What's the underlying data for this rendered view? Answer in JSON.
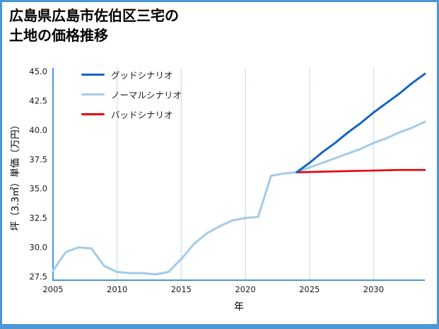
{
  "title": {
    "line1": "広島県広島市佐伯区三宅の",
    "line2": "土地の価格推移"
  },
  "colors": {
    "figure_border": "#4d97d2",
    "axis": "#4d97d2",
    "grid": "#cfe3f5",
    "text": "#1a1a1a",
    "good": "#1565c0",
    "normal": "#a3cbe9",
    "bad": "#e8000b"
  },
  "chart_data": {
    "type": "line",
    "title": "広島県広島市佐伯区三宅の土地の価格推移",
    "xlabel": "年",
    "ylabel": "坪（3.3㎡）単価（万円）",
    "xlim": [
      2005,
      2034
    ],
    "ylim": [
      27.2,
      45.3
    ],
    "xticks": [
      2005,
      2010,
      2015,
      2020,
      2025,
      2030
    ],
    "yticks": [
      27.5,
      30.0,
      32.5,
      35.0,
      37.5,
      40.0,
      42.5,
      45.0
    ],
    "grid": "vertical",
    "legend_position": "upper-left",
    "series": [
      {
        "key": "good",
        "name": "グッドシナリオ",
        "color": "#1565c0",
        "width": 3,
        "z": 3,
        "x": [
          2024,
          2025,
          2026,
          2027,
          2028,
          2029,
          2030,
          2031,
          2032,
          2033,
          2034
        ],
        "y": [
          36.4,
          37.2,
          38.1,
          38.9,
          39.8,
          40.6,
          41.5,
          42.3,
          43.1,
          44.0,
          44.8
        ]
      },
      {
        "key": "normal",
        "name": "ノーマルシナリオ",
        "color": "#a3cbe9",
        "width": 3,
        "z": 1,
        "x": [
          2005,
          2006,
          2007,
          2008,
          2009,
          2010,
          2011,
          2012,
          2013,
          2014,
          2015,
          2016,
          2017,
          2018,
          2019,
          2020,
          2021,
          2022,
          2023,
          2024,
          2025,
          2026,
          2027,
          2028,
          2029,
          2030,
          2031,
          2032,
          2033,
          2034
        ],
        "y": [
          28.0,
          29.6,
          30.0,
          29.9,
          28.4,
          27.9,
          27.8,
          27.8,
          27.7,
          27.9,
          29.0,
          30.3,
          31.2,
          31.8,
          32.3,
          32.5,
          32.6,
          36.1,
          36.3,
          36.4,
          36.8,
          37.2,
          37.6,
          38.0,
          38.4,
          38.9,
          39.3,
          39.8,
          40.2,
          40.7
        ]
      },
      {
        "key": "bad",
        "name": "バッドシナリオ",
        "color": "#e8000b",
        "width": 2.6,
        "z": 2,
        "x": [
          2024,
          2026,
          2028,
          2030,
          2032,
          2034
        ],
        "y": [
          36.4,
          36.45,
          36.5,
          36.55,
          36.6,
          36.6
        ]
      }
    ]
  }
}
